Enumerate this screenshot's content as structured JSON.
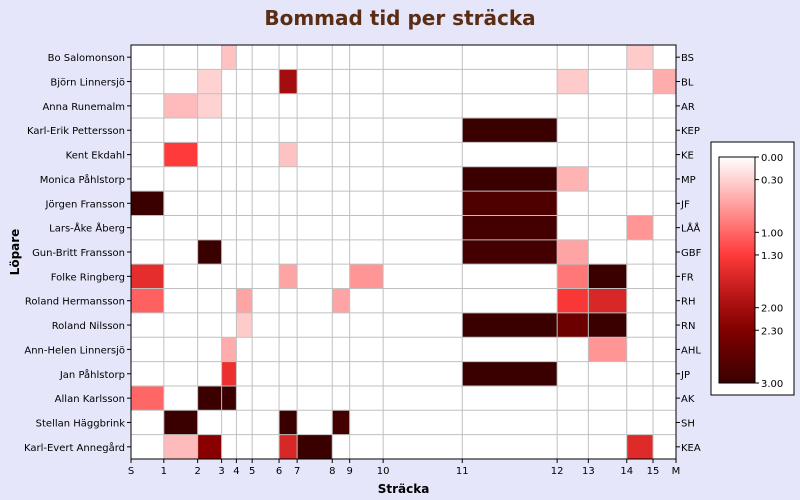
{
  "chart_data": {
    "type": "heatmap",
    "title": "Bommad tid per sträcka",
    "xlabel": "Sträcka",
    "ylabel": "Löpare",
    "x_ticks": [
      "S",
      "1",
      "2",
      "3",
      "4",
      "5",
      "6",
      "7",
      "8",
      "9",
      "10",
      "11",
      "12",
      "13",
      "14",
      "15",
      "M"
    ],
    "x_positions": [
      0,
      1,
      2,
      3,
      4,
      5,
      6,
      7,
      8,
      9,
      10,
      11,
      12,
      13,
      14,
      15,
      16
    ],
    "x_scale": [
      0,
      1.0,
      2.03,
      2.76,
      3.21,
      3.69,
      4.51,
      5.06,
      6.13,
      6.66,
      7.68,
      10.09,
      12.98,
      13.93,
      15.1,
      15.9,
      16.6
    ],
    "rows": [
      {
        "name": "Bo Salomonson",
        "code": "BS"
      },
      {
        "name": "Björn Linnersjö",
        "code": "BL"
      },
      {
        "name": "Anna Runemalm",
        "code": "AR"
      },
      {
        "name": "Karl-Erik Pettersson",
        "code": "KEP"
      },
      {
        "name": "Kent Ekdahl",
        "code": "KE"
      },
      {
        "name": "Monica Påhlstorp",
        "code": "MP"
      },
      {
        "name": "Jörgen Fransson",
        "code": "JF"
      },
      {
        "name": "Lars-Åke Åberg",
        "code": "LÅÅ"
      },
      {
        "name": "Gun-Britt Fransson",
        "code": "GBF"
      },
      {
        "name": "Folke Ringberg",
        "code": "FR"
      },
      {
        "name": "Roland Hermansson",
        "code": "RH"
      },
      {
        "name": "Roland Nilsson",
        "code": "RN"
      },
      {
        "name": "Ann-Helen Linnersjö",
        "code": "AHL"
      },
      {
        "name": "Jan Påhlstorp",
        "code": "JP"
      },
      {
        "name": "Allan Karlsson",
        "code": "AK"
      },
      {
        "name": "Stellan Häggbrink",
        "code": "SH"
      },
      {
        "name": "Karl-Evert Annegård",
        "code": "KEA"
      }
    ],
    "values": [
      [
        0,
        0,
        0,
        0.4,
        0,
        0,
        0,
        0,
        0,
        0,
        0,
        0,
        0,
        0,
        0.35,
        0
      ],
      [
        0,
        0,
        0.3,
        0,
        0,
        0,
        2.0,
        0,
        0,
        0,
        0,
        0,
        0.35,
        0,
        0,
        0.55
      ],
      [
        0,
        0.45,
        0.3,
        0,
        0,
        0,
        0,
        0,
        0,
        0,
        0,
        0,
        0,
        0,
        0,
        0
      ],
      [
        0,
        0,
        0,
        0,
        0,
        0,
        0,
        0,
        0,
        0,
        0,
        3.0,
        0,
        0,
        0,
        0
      ],
      [
        0,
        1.3,
        0,
        0,
        0,
        0,
        0.4,
        0,
        0,
        0,
        0,
        0,
        0,
        0,
        0,
        0
      ],
      [
        0,
        0,
        0,
        0,
        0,
        0,
        0,
        0,
        0,
        0,
        0,
        3.0,
        0.5,
        0,
        0,
        0
      ],
      [
        3.0,
        0,
        0,
        0,
        0,
        0,
        0,
        0,
        0,
        0,
        0,
        2.8,
        0,
        0,
        0,
        0
      ],
      [
        0,
        0,
        0,
        0,
        0,
        0,
        0,
        0,
        0,
        0,
        0,
        2.9,
        0,
        0,
        0.7,
        0
      ],
      [
        0,
        0,
        3.0,
        0,
        0,
        0,
        0,
        0,
        0,
        0,
        0,
        2.9,
        0.6,
        0,
        0,
        0
      ],
      [
        1.5,
        0,
        0,
        0,
        0,
        0,
        0.6,
        0,
        0,
        0.7,
        0,
        0,
        0.9,
        3.0,
        0,
        0
      ],
      [
        1.05,
        0,
        0,
        0,
        0.6,
        0,
        0,
        0,
        0.6,
        0,
        0,
        0,
        1.35,
        1.6,
        0,
        0
      ],
      [
        0,
        0,
        0,
        0,
        0.35,
        0,
        0,
        0,
        0,
        0,
        0,
        3.0,
        2.5,
        3.0,
        0,
        0
      ],
      [
        0,
        0,
        0,
        0.55,
        0,
        0,
        0,
        0,
        0,
        0,
        0,
        0,
        0,
        0.7,
        0,
        0
      ],
      [
        0,
        0,
        0,
        1.45,
        0,
        0,
        0,
        0,
        0,
        0,
        0,
        3.0,
        0,
        0,
        0,
        0
      ],
      [
        1.0,
        0,
        3.0,
        3.0,
        0,
        0,
        0,
        0,
        0,
        0,
        0,
        0,
        0,
        0,
        0,
        0
      ],
      [
        0,
        3.0,
        0,
        0,
        0,
        0,
        3.0,
        0,
        2.9,
        0,
        0,
        0,
        0,
        0,
        0,
        0
      ],
      [
        0,
        0.45,
        2.2,
        0,
        0,
        0,
        1.6,
        3.0,
        0,
        0,
        0,
        0,
        0,
        0,
        1.55,
        0
      ]
    ],
    "colorbar": {
      "tick_labels": [
        "0.00",
        "0.30",
        "1.00",
        "1.30",
        "2.00",
        "2.30",
        "3.00"
      ],
      "tick_values": [
        0,
        0.3,
        1.0,
        1.3,
        2.0,
        2.3,
        3.0
      ],
      "min": 0,
      "max": 3,
      "colors": [
        "#ffffff",
        "#ff3a3a",
        "#8a0000",
        "#3a0000"
      ]
    },
    "grid": true,
    "grid_color": "#c0c0c0",
    "background": "#e6e6fa",
    "title_color": "#5a2d14"
  }
}
